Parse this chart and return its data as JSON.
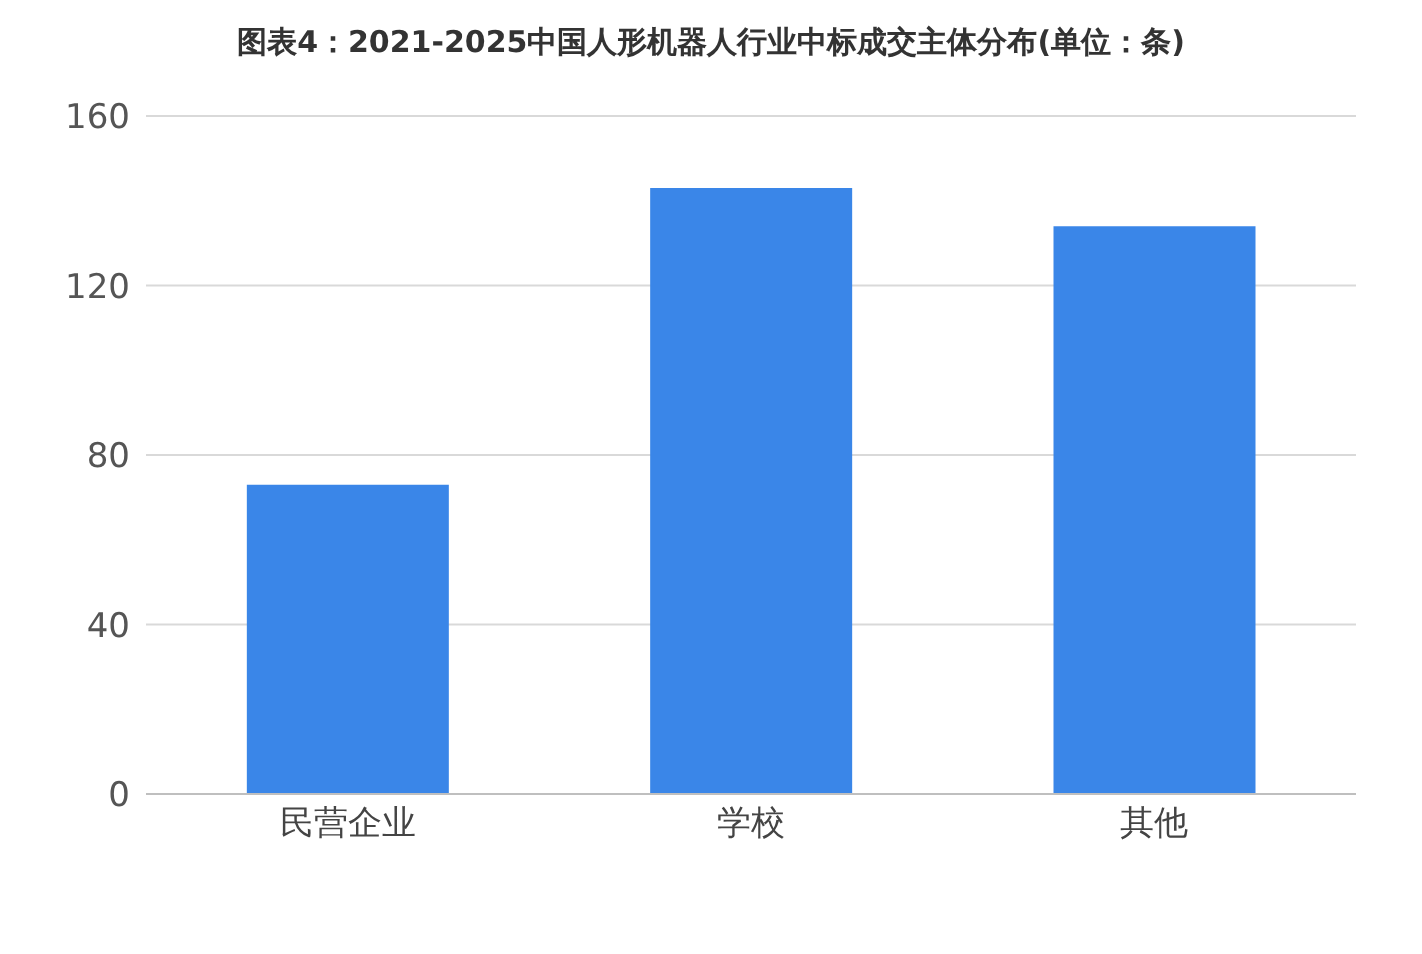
{
  "chart_data": {
    "type": "bar",
    "title": "图表4：2021-2025中国人形机器人行业中标成交主体分布(单位：条)",
    "categories": [
      "民营企业",
      "学校",
      "其他"
    ],
    "values": [
      73,
      143,
      134
    ],
    "color": "#3a86e8",
    "ylim": [
      0,
      160
    ],
    "yticks": [
      0,
      40,
      80,
      120,
      160
    ],
    "grid": "y"
  }
}
